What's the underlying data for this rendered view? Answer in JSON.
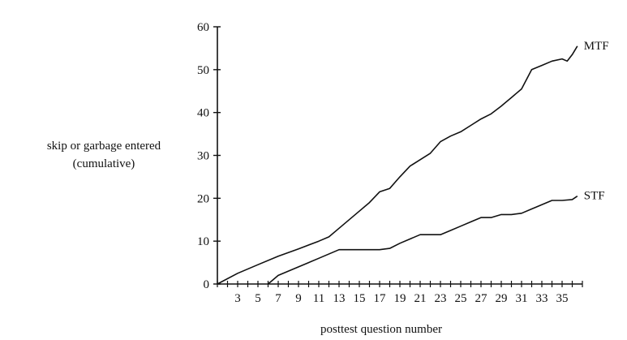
{
  "chart_data": {
    "type": "line",
    "ylabel_lines": [
      "skip or garbage entered",
      "(cumulative)"
    ],
    "xlabel": "posttest question number",
    "xlim": [
      1,
      37
    ],
    "ylim": [
      0,
      60
    ],
    "y_ticks": [
      0,
      10,
      20,
      30,
      40,
      50,
      60
    ],
    "x_tick_labels": [
      3,
      5,
      7,
      9,
      11,
      13,
      15,
      17,
      19,
      21,
      23,
      25,
      27,
      29,
      31,
      33,
      35
    ],
    "x_minor_every": 1,
    "grid": false,
    "series": [
      {
        "name": "MTF",
        "x": [
          1,
          3,
          5,
          7,
          9,
          11,
          12,
          13,
          15,
          16,
          17,
          18,
          19,
          20,
          21,
          22,
          23,
          24,
          25,
          26,
          27,
          28,
          29,
          30,
          31,
          32,
          33,
          34,
          35,
          35.5,
          36,
          36.5
        ],
        "y": [
          0,
          2.5,
          4.5,
          6.5,
          8.2,
          10,
          11,
          13,
          17,
          19,
          21.5,
          22.3,
          25,
          27.5,
          29,
          30.5,
          33.2,
          34.5,
          35.5,
          37,
          38.5,
          39.7,
          41.5,
          43.5,
          45.5,
          50,
          51,
          52,
          52.5,
          52,
          53.5,
          55.5
        ]
      },
      {
        "name": "STF",
        "x": [
          6,
          7,
          9,
          11,
          13,
          14,
          15,
          16,
          17,
          18,
          19,
          20,
          21,
          22,
          23,
          24,
          25,
          26,
          27,
          28,
          29,
          30,
          31,
          32,
          33,
          34,
          35,
          36,
          36.5
        ],
        "y": [
          0,
          2,
          4,
          6,
          8,
          8,
          8,
          8,
          8,
          8.3,
          9.5,
          10.5,
          11.5,
          11.5,
          11.5,
          12.5,
          13.5,
          14.5,
          15.5,
          15.5,
          16.2,
          16.2,
          16.5,
          17.5,
          18.5,
          19.5,
          19.5,
          19.7,
          20.5
        ]
      }
    ],
    "legend": "none (series labels placed at right end of each line)"
  }
}
